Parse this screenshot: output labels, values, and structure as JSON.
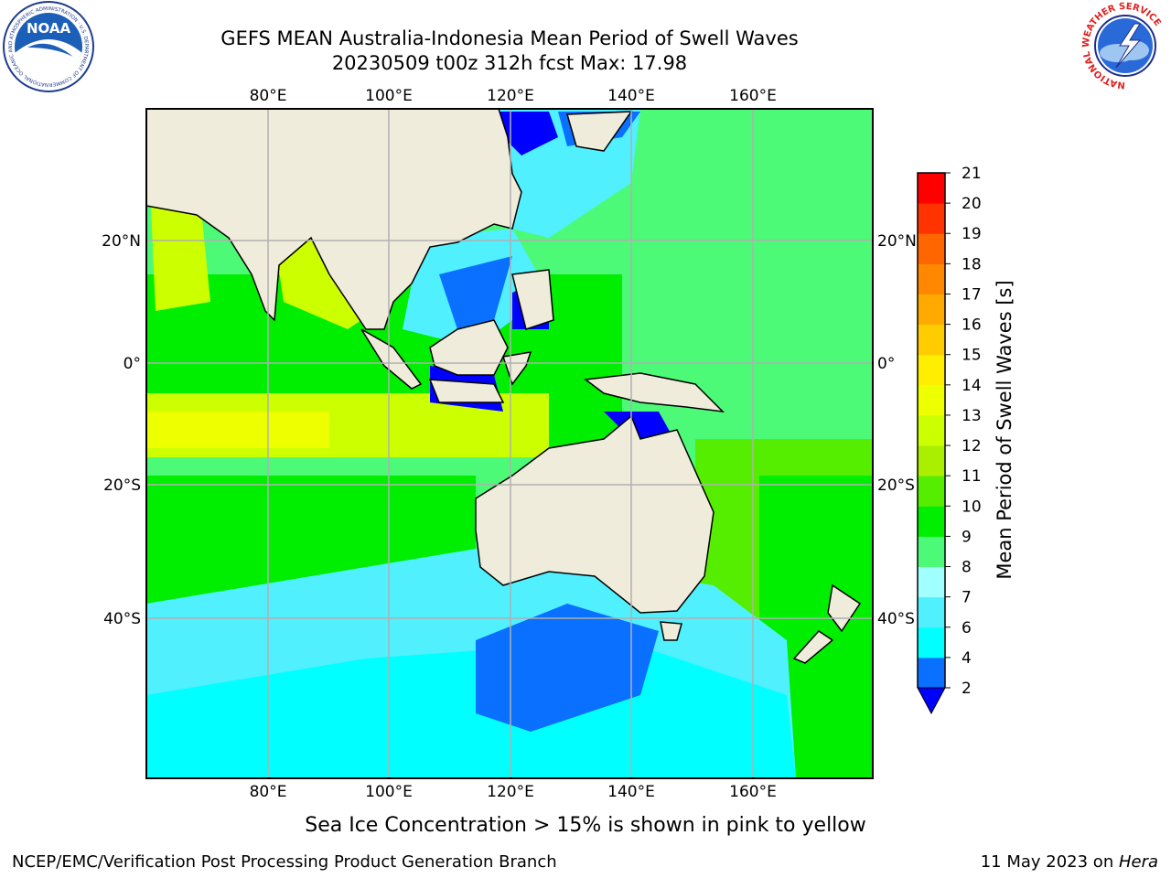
{
  "header": {
    "title_line1": "GEFS MEAN Australia-Indonesia Mean Period of Swell Waves",
    "title_line2": "20230509 t00z 312h fcst   Max: 17.98"
  },
  "logos": {
    "left": {
      "icon": "noaa-logo",
      "ring_text": "NATIONAL OCEANIC AND ATMOSPHERIC ADMINISTRATION · U.S. DEPARTMENT OF COMMERCE",
      "center_text": "NOAA"
    },
    "right": {
      "icon": "nws-logo",
      "ring_text": "NATIONAL WEATHER SERVICE"
    }
  },
  "map": {
    "lon_ticks": [
      "80°E",
      "100°E",
      "120°E",
      "140°E",
      "160°E"
    ],
    "lat_ticks": [
      "20°N",
      "0°",
      "20°S",
      "40°S"
    ],
    "colors": {
      "land": "#efecdc",
      "ocean_default": "#4cfa78"
    }
  },
  "colorbar": {
    "label": "Mean Period of Swell Waves [s]",
    "ticks": [
      "2",
      "4",
      "6",
      "7",
      "8",
      "9",
      "10",
      "11",
      "12",
      "13",
      "14",
      "15",
      "16",
      "17",
      "18",
      "19",
      "20",
      "21"
    ],
    "colors": [
      "#0a70ff",
      "#00ffff",
      "#50f0ff",
      "#a0ffff",
      "#4cfa78",
      "#00ee00",
      "#55ee00",
      "#aaee00",
      "#ccff00",
      "#eeff00",
      "#ffee00",
      "#ffcc00",
      "#ffaa00",
      "#ff8800",
      "#ff6600",
      "#ff3300",
      "#ff0000"
    ],
    "extend_color": "#0000ff"
  },
  "footer": {
    "note": "Sea Ice Concentration > 15% is shown in pink to yellow",
    "left": "NCEP/EMC/Verification Post Processing Product Generation Branch",
    "right_prefix": "11 May 2023 on ",
    "right_host": "Hera"
  }
}
